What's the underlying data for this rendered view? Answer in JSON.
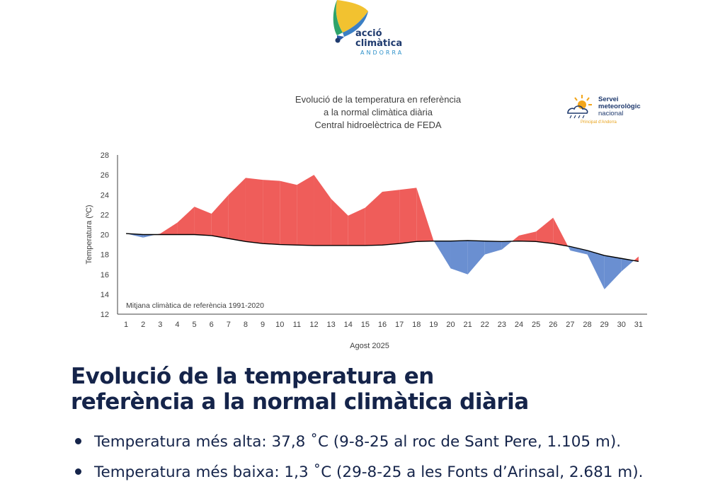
{
  "logo": {
    "line1": "acció",
    "line2": "climàtica",
    "line3": "ANDORRA"
  },
  "smn_logo": {
    "line1": "Servei",
    "line2": "meteorològic",
    "line3": "nacional",
    "line4": "Principat d'Andorra"
  },
  "chart_data": {
    "type": "area",
    "title_lines": [
      "Evolució de la temperatura en referència",
      "a la normal climàtica diària",
      "Central hidroelèctrica de FEDA"
    ],
    "xlabel": "Agost 2025",
    "ylabel": "Temperatura (ºC)",
    "ylim": [
      12,
      28
    ],
    "yticks": [
      12,
      14,
      16,
      18,
      20,
      22,
      24,
      26,
      28
    ],
    "x": [
      1,
      2,
      3,
      4,
      5,
      6,
      7,
      8,
      9,
      10,
      11,
      12,
      13,
      14,
      15,
      16,
      17,
      18,
      19,
      20,
      21,
      22,
      23,
      24,
      25,
      26,
      27,
      28,
      29,
      30,
      31
    ],
    "series": [
      {
        "role": "observed",
        "values": [
          20.1,
          19.7,
          20.1,
          21.2,
          22.8,
          22.1,
          24.0,
          25.7,
          25.5,
          25.4,
          25.0,
          26.0,
          23.6,
          21.9,
          22.7,
          24.3,
          24.5,
          24.7,
          19.4,
          16.6,
          16.0,
          18.0,
          18.5,
          19.9,
          20.3,
          21.7,
          18.4,
          18.0,
          14.5,
          16.3,
          17.8
        ]
      },
      {
        "role": "normal",
        "name": "Mitjana climàtica de referència 1991-2020",
        "values": [
          20.1,
          20.0,
          20.0,
          20.0,
          20.0,
          19.9,
          19.6,
          19.3,
          19.1,
          19.0,
          18.95,
          18.9,
          18.9,
          18.9,
          18.9,
          18.95,
          19.1,
          19.3,
          19.35,
          19.35,
          19.4,
          19.35,
          19.3,
          19.35,
          19.3,
          19.1,
          18.8,
          18.4,
          17.9,
          17.6,
          17.3
        ]
      }
    ],
    "annotation": "Mitjana climàtica de referència 1991-2020",
    "colors": {
      "above": "#ef5d5a",
      "below": "#6a8fd1",
      "normal_line": "#000000"
    },
    "grid": false
  },
  "heading": {
    "line1": "Evolució de la temperatura en",
    "line2": "referència a la normal climàtica diària"
  },
  "bullets": [
    "Temperatura més alta: 37,8 ˚C (9-8-25 al roc de Sant Pere, 1.105 m).",
    "Temperatura més baixa: 1,3 ˚C (29-8-25 a les Fonts d’Arinsal, 2.681 m)."
  ]
}
